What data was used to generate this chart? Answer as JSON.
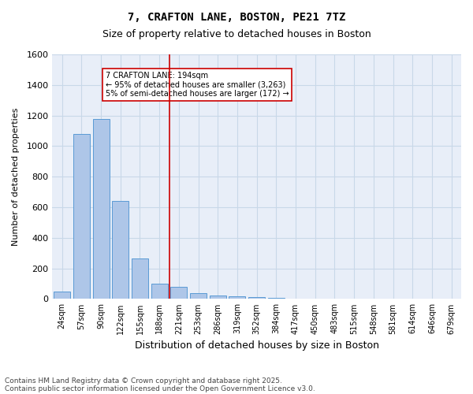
{
  "title1": "7, CRAFTON LANE, BOSTON, PE21 7TZ",
  "title2": "Size of property relative to detached houses in Boston",
  "xlabel": "Distribution of detached houses by size in Boston",
  "ylabel": "Number of detached properties",
  "categories": [
    "24sqm",
    "57sqm",
    "90sqm",
    "122sqm",
    "155sqm",
    "188sqm",
    "221sqm",
    "253sqm",
    "286sqm",
    "319sqm",
    "352sqm",
    "384sqm",
    "417sqm",
    "450sqm",
    "483sqm",
    "515sqm",
    "548sqm",
    "581sqm",
    "614sqm",
    "646sqm",
    "679sqm"
  ],
  "values": [
    50,
    1080,
    1175,
    640,
    265,
    100,
    80,
    40,
    25,
    20,
    15,
    5,
    3,
    2,
    1,
    1,
    1,
    0,
    0,
    0,
    0
  ],
  "bar_color": "#aec6e8",
  "bar_edge_color": "#5a9bd5",
  "grid_color": "#c8d8e8",
  "bg_color": "#e8eef8",
  "vline_x": 5.5,
  "vline_color": "#cc0000",
  "annotation_text": "7 CRAFTON LANE: 194sqm\n← 95% of detached houses are smaller (3,263)\n5% of semi-detached houses are larger (172) →",
  "annotation_box_color": "#cc0000",
  "footer1": "Contains HM Land Registry data © Crown copyright and database right 2025.",
  "footer2": "Contains public sector information licensed under the Open Government Licence v3.0.",
  "ylim": [
    0,
    1600
  ],
  "yticks": [
    0,
    200,
    400,
    600,
    800,
    1000,
    1200,
    1400,
    1600
  ]
}
